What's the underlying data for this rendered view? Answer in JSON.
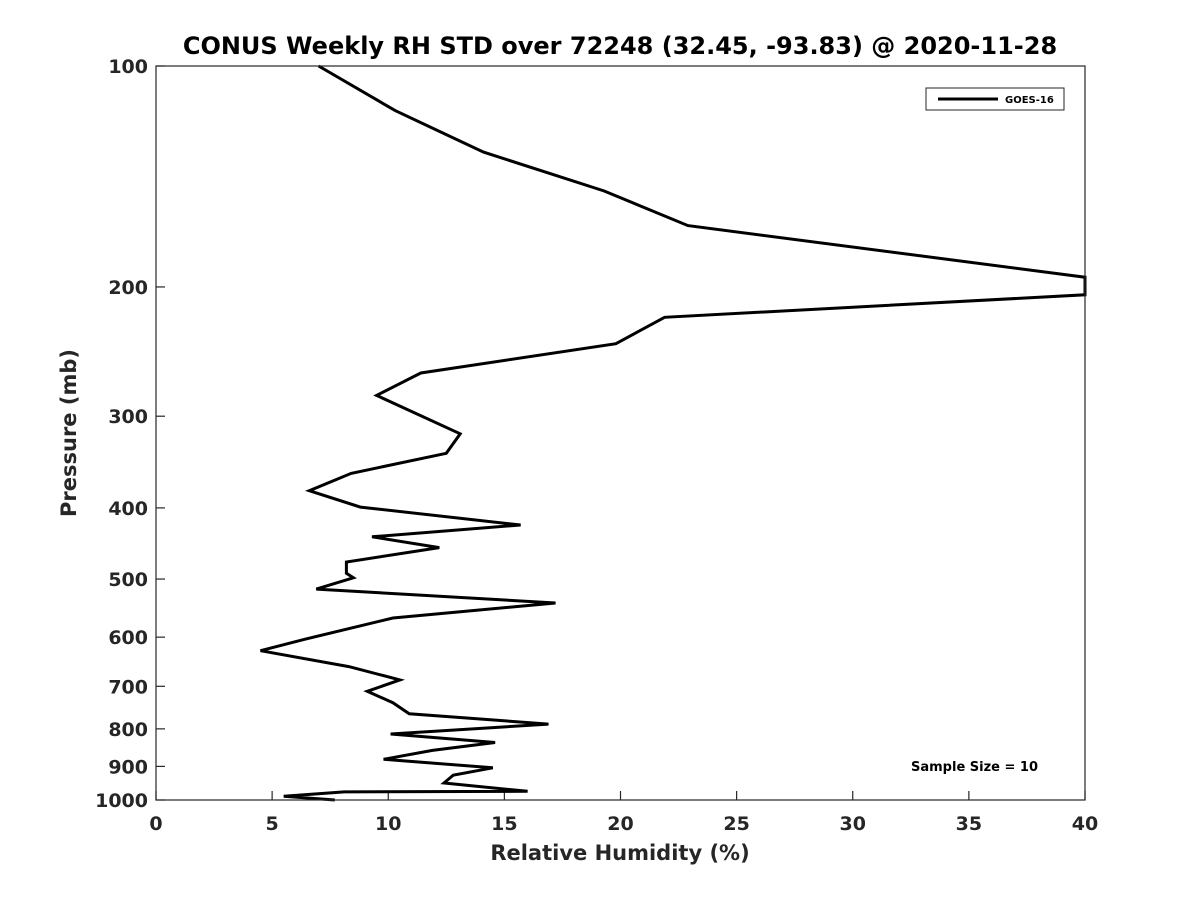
{
  "chart_data": {
    "type": "line",
    "title": "CONUS Weekly RH STD over 72248 (32.45, -93.83) @ 2020-11-28",
    "xlabel": "Relative Humidity (%)",
    "ylabel": "Pressure (mb)",
    "xlim": [
      0,
      40
    ],
    "ylim": [
      100,
      1000
    ],
    "y_scale": "log",
    "y_reversed": true,
    "x_ticks": [
      "0",
      "5",
      "10",
      "15",
      "20",
      "25",
      "30",
      "35",
      "40"
    ],
    "y_ticks": [
      "100",
      "200",
      "300",
      "400",
      "500",
      "600",
      "700",
      "800",
      "900",
      "1000"
    ],
    "grid": false,
    "legend_position": "top-right",
    "series": [
      {
        "name": "GOES-16",
        "color": "#000000",
        "x": [
          7.0,
          10.3,
          14.1,
          19.3,
          22.9,
          40.0,
          40.0,
          21.9,
          19.8,
          11.4,
          9.5,
          13.1,
          12.5,
          8.4,
          6.6,
          8.8,
          15.7,
          9.3,
          12.2,
          8.2,
          8.2,
          8.5,
          6.9,
          17.2,
          10.2,
          6.4,
          4.5,
          8.3,
          10.5,
          9.1,
          10.2,
          10.9,
          16.9,
          10.1,
          14.6,
          11.9,
          9.8,
          14.5,
          12.8,
          12.4,
          16.0,
          8.1,
          5.5,
          7.7
        ],
        "y": [
          100,
          115,
          131,
          148,
          165,
          194,
          205,
          220,
          239,
          262,
          281,
          317,
          337,
          359,
          379,
          399,
          422,
          438,
          453,
          474,
          491,
          498,
          516,
          539,
          565,
          604,
          626,
          658,
          686,
          711,
          737,
          763,
          788,
          813,
          835,
          856,
          880,
          904,
          925,
          948,
          973,
          975,
          988,
          1000
        ]
      }
    ],
    "annotations": [
      "Sample Size = 10"
    ]
  }
}
